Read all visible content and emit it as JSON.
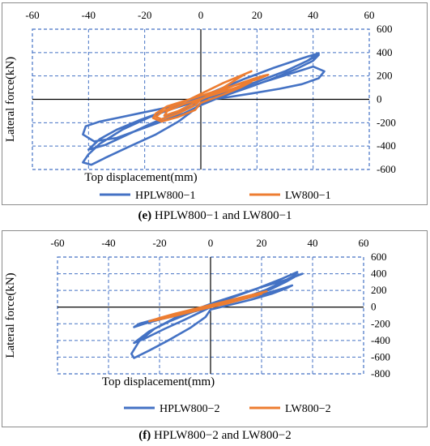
{
  "captions": {
    "e": {
      "letter": "(e)",
      "text": " HPLW800−1 and LW800−1"
    },
    "f": {
      "letter": "(f)",
      "text": " HPLW800−2 and LW800−2"
    }
  },
  "chart_data": [
    {
      "type": "line",
      "panel": "e",
      "title": "",
      "xlabel": "Top displacement(mm)",
      "ylabel": "Lateral force(kN)",
      "xlim": [
        -60,
        60
      ],
      "ylim": [
        -600,
        600
      ],
      "x_ticks": [
        -60,
        -40,
        -20,
        0,
        20,
        40,
        60
      ],
      "y_ticks": [
        600,
        400,
        200,
        0,
        -200,
        -400,
        -600
      ],
      "x_tick_labels": [
        "-60",
        "-40",
        "-20",
        "0",
        "20",
        "40",
        "60"
      ],
      "y_tick_labels": [
        "600",
        "400",
        "200",
        "0",
        "-200",
        "-400",
        "-600"
      ],
      "grid": true,
      "legend_position": "bottom",
      "series": [
        {
          "name": "HPLW800−1",
          "color": "#4472C4",
          "x": [
            0,
            10,
            20,
            30,
            38,
            41,
            42,
            36,
            26,
            15,
            6,
            0,
            -8,
            -18,
            -28,
            -36,
            -40,
            -42,
            -39,
            -34,
            -26,
            -16,
            -8,
            -3,
            0,
            8,
            16,
            24,
            32,
            36,
            40,
            44,
            42,
            36,
            28,
            18,
            10,
            4,
            0,
            -6,
            -14,
            -22,
            -30,
            -36,
            -41,
            -42,
            -38,
            -30,
            -22,
            -14,
            -6,
            0,
            6,
            12,
            18,
            26,
            34,
            40,
            42,
            38,
            30,
            20,
            10,
            2,
            -6,
            -14,
            -22,
            -30,
            -36,
            -40,
            -34,
            -26,
            -18,
            -10,
            -3,
            0
          ],
          "y": [
            0,
            70,
            150,
            240,
            330,
            380,
            395,
            350,
            270,
            170,
            80,
            20,
            -60,
            -150,
            -260,
            -380,
            -470,
            -540,
            -560,
            -500,
            -410,
            -300,
            -190,
            -100,
            -30,
            40,
            100,
            160,
            220,
            250,
            280,
            240,
            180,
            130,
            90,
            50,
            20,
            0,
            -10,
            -40,
            -80,
            -120,
            -160,
            -190,
            -230,
            -300,
            -360,
            -330,
            -260,
            -190,
            -120,
            -50,
            10,
            60,
            110,
            180,
            260,
            330,
            380,
            330,
            240,
            150,
            70,
            10,
            -50,
            -110,
            -180,
            -260,
            -340,
            -430,
            -390,
            -300,
            -210,
            -130,
            -60,
            0
          ]
        },
        {
          "name": "LW800−1",
          "color": "#ED7D31",
          "x": [
            0,
            4,
            8,
            12,
            16,
            18,
            14,
            8,
            2,
            -4,
            -10,
            -14,
            -16,
            -14,
            -8,
            -2,
            0,
            6,
            12,
            18,
            22,
            24,
            20,
            12,
            4,
            -4,
            -12,
            -16,
            -17,
            -14,
            -8,
            -2,
            0,
            8,
            14,
            18,
            16,
            10,
            2,
            -6,
            -12,
            -13,
            -8,
            0
          ],
          "y": [
            0,
            50,
            100,
            160,
            220,
            240,
            200,
            140,
            70,
            0,
            -60,
            -110,
            -150,
            -170,
            -120,
            -50,
            0,
            60,
            120,
            170,
            200,
            210,
            170,
            120,
            60,
            0,
            -60,
            -120,
            -160,
            -190,
            -150,
            -90,
            -30,
            40,
            100,
            150,
            130,
            80,
            20,
            -40,
            -100,
            -140,
            -100,
            0
          ]
        }
      ]
    },
    {
      "type": "line",
      "panel": "f",
      "title": "",
      "xlabel": "Top displacement(mm)",
      "ylabel": "Lateral force(kN)",
      "xlim": [
        -60,
        60
      ],
      "ylim": [
        -800,
        600
      ],
      "x_ticks": [
        -60,
        -40,
        -20,
        0,
        20,
        40,
        60
      ],
      "y_ticks": [
        600,
        400,
        200,
        0,
        -200,
        -400,
        -600,
        -800
      ],
      "x_tick_labels": [
        "-60",
        "-40",
        "-20",
        "0",
        "20",
        "40",
        "60"
      ],
      "y_tick_labels": [
        "600",
        "400",
        "200",
        "0",
        "-200",
        "-400",
        "-600",
        "-800"
      ],
      "grid": true,
      "legend_position": "bottom",
      "series": [
        {
          "name": "HPLW800−2",
          "color": "#4472C4",
          "x": [
            0,
            8,
            16,
            24,
            30,
            34,
            36,
            30,
            20,
            10,
            2,
            -6,
            -14,
            -22,
            -28,
            -31,
            -30,
            -24,
            -16,
            -8,
            -2,
            0,
            8,
            16,
            24,
            30,
            32,
            28,
            20,
            12,
            4,
            -4,
            -12,
            -20,
            -26,
            -30,
            -28,
            -22,
            -14,
            -6,
            0,
            6,
            14,
            22,
            28,
            33,
            34,
            28,
            18,
            8,
            0,
            -8,
            -16,
            -24,
            -30,
            -26,
            -18,
            -10,
            -4,
            0
          ],
          "y": [
            0,
            60,
            130,
            220,
            310,
            380,
            400,
            330,
            240,
            140,
            60,
            -30,
            -130,
            -260,
            -410,
            -560,
            -610,
            -520,
            -390,
            -250,
            -120,
            -30,
            30,
            90,
            160,
            230,
            260,
            220,
            150,
            90,
            30,
            -30,
            -90,
            -150,
            -200,
            -240,
            -200,
            -150,
            -100,
            -50,
            0,
            50,
            120,
            210,
            300,
            380,
            420,
            340,
            220,
            110,
            20,
            -70,
            -170,
            -290,
            -430,
            -380,
            -260,
            -150,
            -60,
            0
          ]
        },
        {
          "name": "LW800−2",
          "color": "#ED7D31",
          "x": [
            0,
            6,
            12,
            18,
            22,
            18,
            10,
            2,
            -6,
            -14,
            -20,
            -24,
            -20,
            -12,
            -4,
            0,
            6,
            12,
            18,
            20,
            14,
            6,
            -2,
            -10,
            -18,
            -22,
            -16,
            -8,
            0
          ],
          "y": [
            0,
            40,
            90,
            150,
            190,
            160,
            100,
            40,
            -20,
            -80,
            -130,
            -170,
            -140,
            -90,
            -30,
            0,
            40,
            90,
            140,
            160,
            120,
            60,
            0,
            -60,
            -120,
            -160,
            -120,
            -60,
            0
          ]
        }
      ]
    }
  ]
}
